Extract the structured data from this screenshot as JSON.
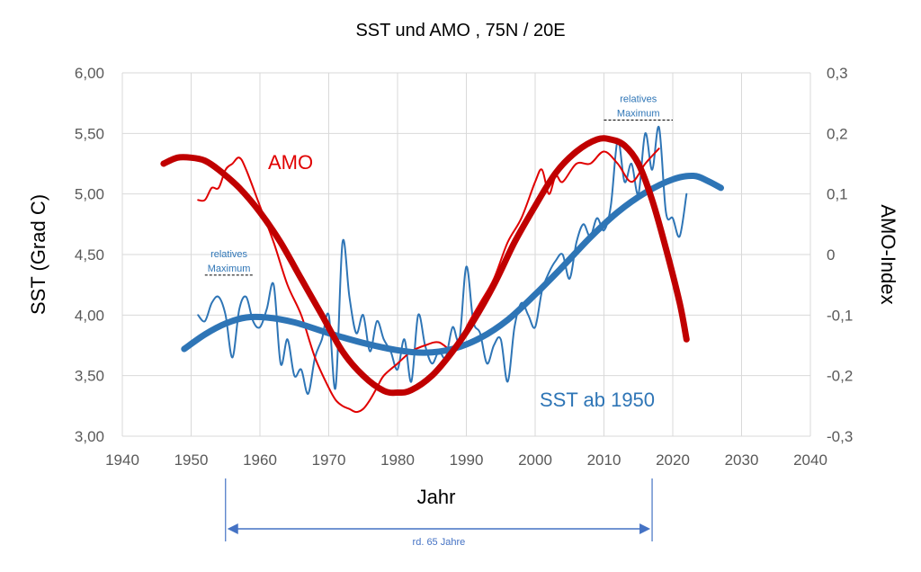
{
  "chart_data": {
    "type": "line",
    "title": "SST und AMO , 75N / 20E",
    "xlabel": "Jahr",
    "ylabel_left": "SST (Grad C)",
    "ylabel_right": "AMO-Index",
    "xlim": [
      1940,
      2040
    ],
    "ylim_left": [
      3.0,
      6.0
    ],
    "ylim_right": [
      -0.3,
      0.3
    ],
    "grid": true,
    "x_ticks": [
      "1940",
      "1950",
      "1960",
      "1970",
      "1980",
      "1990",
      "2000",
      "2010",
      "2020",
      "2030",
      "2040"
    ],
    "y_left_ticks": [
      "6,00",
      "5,50",
      "5,00",
      "4,50",
      "4,00",
      "3,50",
      "3,00"
    ],
    "y_right_ticks": [
      "0,3",
      "0,2",
      "0,1",
      "0",
      "-0,1",
      "-0,2",
      "-0,3"
    ],
    "colors": {
      "sst": "#2e75b6",
      "amo": "#e00000",
      "amo_trend": "#c00000",
      "annotation": "#2e75b6"
    },
    "series": [
      {
        "name": "SST ab 1950",
        "axis": "left",
        "style": "thin",
        "x": [
          1951,
          1952,
          1953,
          1954,
          1955,
          1956,
          1957,
          1958,
          1959,
          1960,
          1961,
          1962,
          1963,
          1964,
          1965,
          1966,
          1967,
          1968,
          1969,
          1970,
          1971,
          1972,
          1973,
          1974,
          1975,
          1976,
          1977,
          1978,
          1979,
          1980,
          1981,
          1982,
          1983,
          1984,
          1985,
          1986,
          1987,
          1988,
          1989,
          1990,
          1991,
          1992,
          1993,
          1994,
          1995,
          1996,
          1997,
          1998,
          1999,
          2000,
          2001,
          2002,
          2003,
          2004,
          2005,
          2006,
          2007,
          2008,
          2009,
          2010,
          2011,
          2012,
          2013,
          2014,
          2015,
          2016,
          2017,
          2018,
          2019,
          2020,
          2021,
          2022
        ],
        "y": [
          4.0,
          3.95,
          4.1,
          4.15,
          4.0,
          3.65,
          4.05,
          4.15,
          3.95,
          3.9,
          4.05,
          4.25,
          3.6,
          3.8,
          3.5,
          3.55,
          3.35,
          3.65,
          3.8,
          4.0,
          3.4,
          4.6,
          4.15,
          3.85,
          4.0,
          3.7,
          3.95,
          3.8,
          3.7,
          3.55,
          3.8,
          3.45,
          4.0,
          3.75,
          3.6,
          3.7,
          3.65,
          3.9,
          3.8,
          4.4,
          3.95,
          3.85,
          3.6,
          3.75,
          3.8,
          3.45,
          3.9,
          4.1,
          4.0,
          3.9,
          4.2,
          4.35,
          4.45,
          4.5,
          4.3,
          4.6,
          4.75,
          4.65,
          4.8,
          4.7,
          4.9,
          5.45,
          5.1,
          5.25,
          5.0,
          5.5,
          5.2,
          5.55,
          4.85,
          4.8,
          4.65,
          5.0
        ]
      },
      {
        "name": "SST ab 1950",
        "axis": "left",
        "style": "trend",
        "x": [
          1949,
          1952,
          1955,
          1958,
          1961,
          1965,
          1970,
          1975,
          1980,
          1984,
          1988,
          1992,
          1996,
          2000,
          2004,
          2008,
          2012,
          2016,
          2020,
          2023,
          2025,
          2027
        ],
        "y": [
          3.72,
          3.84,
          3.93,
          3.98,
          3.98,
          3.94,
          3.85,
          3.77,
          3.71,
          3.69,
          3.72,
          3.81,
          3.96,
          4.17,
          4.4,
          4.64,
          4.85,
          5.01,
          5.12,
          5.15,
          5.11,
          5.05
        ]
      },
      {
        "name": "AMO",
        "axis": "right",
        "style": "thin",
        "x": [
          1951,
          1952,
          1953,
          1954,
          1955,
          1956,
          1957,
          1958,
          1960,
          1962,
          1964,
          1966,
          1968,
          1970,
          1971,
          1972,
          1973,
          1974,
          1975,
          1976,
          1977,
          1978,
          1980,
          1982,
          1984,
          1986,
          1988,
          1989,
          1990,
          1992,
          1994,
          1996,
          1998,
          2000,
          2001,
          2002,
          2003,
          2004,
          2006,
          2008,
          2010,
          2012,
          2014,
          2016,
          2018
        ],
        "y": [
          0.09,
          0.09,
          0.11,
          0.11,
          0.14,
          0.15,
          0.16,
          0.14,
          0.08,
          0.02,
          -0.05,
          -0.1,
          -0.17,
          -0.22,
          -0.24,
          -0.25,
          -0.255,
          -0.26,
          -0.255,
          -0.24,
          -0.22,
          -0.2,
          -0.18,
          -0.16,
          -0.15,
          -0.145,
          -0.16,
          -0.15,
          -0.12,
          -0.08,
          -0.04,
          0.02,
          0.06,
          0.12,
          0.14,
          0.1,
          0.13,
          0.12,
          0.15,
          0.15,
          0.17,
          0.15,
          0.12,
          0.15,
          0.175
        ]
      },
      {
        "name": "AMO",
        "axis": "right",
        "style": "trend",
        "x": [
          1946,
          1948,
          1950,
          1952,
          1954,
          1957,
          1960,
          1963,
          1966,
          1969,
          1972,
          1975,
          1978,
          1980,
          1982,
          1985,
          1988,
          1991,
          1994,
          1997,
          2000,
          2003,
          2006,
          2009,
          2011,
          2013,
          2015,
          2017,
          2019,
          2021,
          2022
        ],
        "y": [
          0.15,
          0.16,
          0.16,
          0.155,
          0.14,
          0.11,
          0.07,
          0.02,
          -0.04,
          -0.1,
          -0.16,
          -0.2,
          -0.225,
          -0.228,
          -0.224,
          -0.2,
          -0.16,
          -0.11,
          -0.05,
          0.02,
          0.08,
          0.135,
          0.17,
          0.19,
          0.19,
          0.18,
          0.15,
          0.09,
          0.01,
          -0.08,
          -0.14
        ]
      }
    ],
    "annotations": [
      {
        "text_top": "relatives",
        "text_bottom": "Maximum",
        "x_start": 1952,
        "x_end": 1959,
        "y_left": 4.33
      },
      {
        "text_top": "relatives",
        "text_bottom": "Maximum",
        "x_start": 2010,
        "x_end": 2020,
        "y_left": 5.61
      }
    ],
    "series_labels": {
      "amo": "AMO",
      "sst": "SST ab 1950"
    },
    "span": {
      "label": "rd. 65 Jahre",
      "x_start": 1955,
      "x_end": 2017
    }
  }
}
